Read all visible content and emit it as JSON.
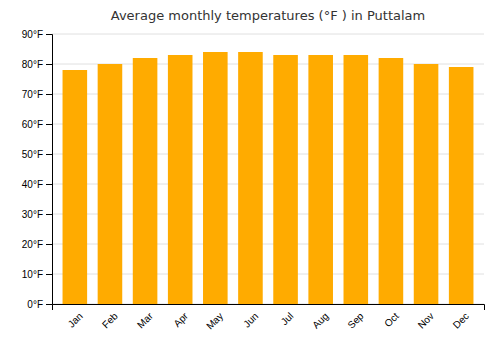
{
  "chart_data": {
    "type": "bar",
    "title": "Average monthly temperatures (°F ) in Puttalam",
    "categories": [
      "Jan",
      "Feb",
      "Mar",
      "Apr",
      "May",
      "Jun",
      "Jul",
      "Aug",
      "Sep",
      "Oct",
      "Nov",
      "Dec"
    ],
    "values": [
      78,
      80,
      82,
      83,
      84,
      84,
      83,
      83,
      83,
      82,
      80,
      79
    ],
    "color": "#FFAB00",
    "ylim": [
      0,
      90
    ],
    "yticks": [
      {
        "value": 0,
        "label": "0°F"
      },
      {
        "value": 10,
        "label": "10°F"
      },
      {
        "value": 20,
        "label": "20°F"
      },
      {
        "value": 30,
        "label": "30°F"
      },
      {
        "value": 40,
        "label": "40°F"
      },
      {
        "value": 50,
        "label": "50°F"
      },
      {
        "value": 60,
        "label": "60°F"
      },
      {
        "value": 70,
        "label": "70°F"
      },
      {
        "value": 80,
        "label": "80°F"
      },
      {
        "value": 90,
        "label": "90°F"
      }
    ],
    "grid": true
  }
}
